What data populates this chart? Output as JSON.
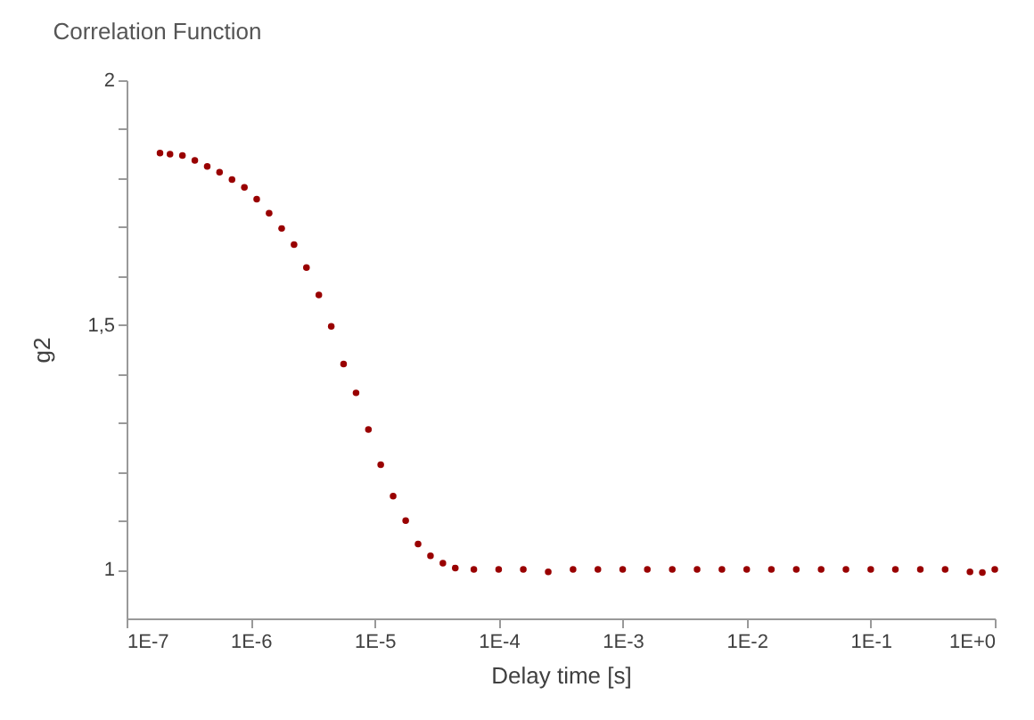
{
  "chart_data": {
    "type": "scatter",
    "title": "Correlation Function",
    "xlabel": "Delay time [s]",
    "ylabel": "g2",
    "log": "x",
    "marker": "circle",
    "grid": false,
    "xlim": [
      1e-07,
      1
    ],
    "ylim": [
      0.9,
      2
    ],
    "xticks": [
      {
        "value": 1e-07,
        "label": "1E-7"
      },
      {
        "value": 1e-06,
        "label": "1E-6"
      },
      {
        "value": 1e-05,
        "label": "1E-5"
      },
      {
        "value": 0.0001,
        "label": "1E-4"
      },
      {
        "value": 0.001,
        "label": "1E-3"
      },
      {
        "value": 0.01,
        "label": "1E-2"
      },
      {
        "value": 0.1,
        "label": "1E-1"
      },
      {
        "value": 1,
        "label": "1E+0"
      }
    ],
    "yticks": [
      {
        "value": 1,
        "label": "1"
      },
      {
        "value": 1.1,
        "label": null
      },
      {
        "value": 1.2,
        "label": null
      },
      {
        "value": 1.3,
        "label": null
      },
      {
        "value": 1.4,
        "label": null
      },
      {
        "value": 1.5,
        "label": "1,5"
      },
      {
        "value": 1.6,
        "label": null
      },
      {
        "value": 1.7,
        "label": null
      },
      {
        "value": 1.8,
        "label": null
      },
      {
        "value": 1.9,
        "label": null
      },
      {
        "value": 2,
        "label": "2"
      }
    ],
    "series": [
      {
        "color": "#990000",
        "x": [
          1.86e-07,
          2.24e-07,
          2.82e-07,
          3.55e-07,
          4.47e-07,
          5.62e-07,
          7.08e-07,
          8.91e-07,
          1.12e-06,
          1.41e-06,
          1.78e-06,
          2.24e-06,
          2.82e-06,
          3.55e-06,
          4.47e-06,
          5.62e-06,
          7.08e-06,
          8.91e-06,
          1.12e-05,
          1.41e-05,
          1.78e-05,
          2.24e-05,
          2.82e-05,
          3.55e-05,
          4.47e-05,
          6.31e-05,
          0.0001,
          0.000158,
          0.000251,
          0.000398,
          0.000631,
          0.001,
          0.00158,
          0.00251,
          0.00398,
          0.00631,
          0.01,
          0.0158,
          0.0251,
          0.0398,
          0.0631,
          0.1,
          0.158,
          0.251,
          0.398,
          0.631,
          0.794,
          1.0
        ],
        "values": [
          1.851,
          1.849,
          1.846,
          1.836,
          1.824,
          1.812,
          1.797,
          1.781,
          1.757,
          1.728,
          1.697,
          1.664,
          1.617,
          1.561,
          1.497,
          1.42,
          1.361,
          1.286,
          1.214,
          1.15,
          1.1,
          1.052,
          1.028,
          1.013,
          1.003,
          1.0,
          1.0,
          1.0,
          0.995,
          1.0,
          1.0,
          1.0,
          1.0,
          1.0,
          1.0,
          1.0,
          1.0,
          1.0,
          1.0,
          1.0,
          1.0,
          1.0,
          1.0,
          1.0,
          1.0,
          0.995,
          0.994,
          1.0
        ]
      }
    ]
  }
}
